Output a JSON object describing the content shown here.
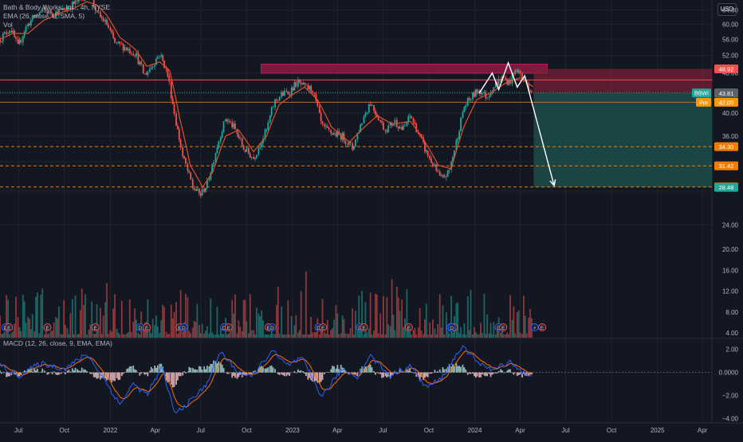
{
  "header": {
    "symbol_line": "Bath & Body Works, Inc., 4h, NYSE",
    "ema_line": "EMA (26, close, 0, SMA, 5)",
    "vol_line": "Vol",
    "currency": "USD"
  },
  "macd_legend": "MACD (12, 26, close, 9, EMA, EMA)",
  "colors": {
    "background": "#131722",
    "up": "#26a69a",
    "down": "#ef5350",
    "ema": "#e0502b",
    "macd": "#2962ff",
    "signal": "#ff6d00",
    "resistance_zone": "#9c1e4a",
    "target_zone": "#1e5a52",
    "stop_zone": "#7a2236"
  },
  "chart_data": [
    {
      "type": "candlestick",
      "name": "price",
      "interval": "4h",
      "ylim": [
        22.5,
        67
      ],
      "yticks": [
        24,
        28,
        32,
        36,
        40,
        44,
        48,
        52,
        56,
        60,
        64
      ],
      "ytick_labels": [
        "24.00",
        "",
        "",
        "36.00",
        "40.00",
        "44.00",
        "48.00",
        "52.00",
        "56.00",
        "60.00",
        "64.00"
      ],
      "xlim": [
        "2021-05-25",
        "2025-04-20"
      ],
      "xticks": [
        {
          "date": "2021-07-01",
          "label": "Jul"
        },
        {
          "date": "2021-10-01",
          "label": "Oct"
        },
        {
          "date": "2022-01-01",
          "label": "2022"
        },
        {
          "date": "2022-04-01",
          "label": "Apr"
        },
        {
          "date": "2022-07-01",
          "label": "Jul"
        },
        {
          "date": "2022-10-01",
          "label": "Oct"
        },
        {
          "date": "2023-01-01",
          "label": "2023"
        },
        {
          "date": "2023-04-01",
          "label": "Apr"
        },
        {
          "date": "2023-07-01",
          "label": "Jul"
        },
        {
          "date": "2023-10-01",
          "label": "Oct"
        },
        {
          "date": "2024-01-01",
          "label": "2024"
        },
        {
          "date": "2024-04-01",
          "label": "Apr"
        },
        {
          "date": "2024-07-01",
          "label": "Jul"
        },
        {
          "date": "2024-10-01",
          "label": "Oct"
        },
        {
          "date": "2025-01-01",
          "label": "2025"
        },
        {
          "date": "2025-04-01",
          "label": "Apr"
        }
      ],
      "price_path": [
        {
          "date": "2021-05-25",
          "price": 56.0
        },
        {
          "date": "2021-06-15",
          "price": 59.0
        },
        {
          "date": "2021-06-30",
          "price": 54.0
        },
        {
          "date": "2021-07-15",
          "price": 59.0
        },
        {
          "date": "2021-08-01",
          "price": 62.0
        },
        {
          "date": "2021-08-20",
          "price": 64.0
        },
        {
          "date": "2021-09-10",
          "price": 63.0
        },
        {
          "date": "2021-10-05",
          "price": 64.5
        },
        {
          "date": "2021-11-01",
          "price": 67.0
        },
        {
          "date": "2021-11-20",
          "price": 69.5
        },
        {
          "date": "2021-12-05",
          "price": 63.0
        },
        {
          "date": "2021-12-25",
          "price": 60.0
        },
        {
          "date": "2022-01-10",
          "price": 55.0
        },
        {
          "date": "2022-01-30",
          "price": 54.0
        },
        {
          "date": "2022-02-20",
          "price": 52.5
        },
        {
          "date": "2022-03-10",
          "price": 47.5
        },
        {
          "date": "2022-03-25",
          "price": 49.5
        },
        {
          "date": "2022-04-10",
          "price": 52.5
        },
        {
          "date": "2022-04-25",
          "price": 48.0
        },
        {
          "date": "2022-05-10",
          "price": 39.5
        },
        {
          "date": "2022-05-25",
          "price": 33.0
        },
        {
          "date": "2022-06-15",
          "price": 28.5
        },
        {
          "date": "2022-06-30",
          "price": 27.5
        },
        {
          "date": "2022-07-15",
          "price": 29.0
        },
        {
          "date": "2022-08-05",
          "price": 35.0
        },
        {
          "date": "2022-08-20",
          "price": 39.0
        },
        {
          "date": "2022-09-05",
          "price": 37.5
        },
        {
          "date": "2022-09-25",
          "price": 34.0
        },
        {
          "date": "2022-10-15",
          "price": 32.5
        },
        {
          "date": "2022-11-10",
          "price": 37.0
        },
        {
          "date": "2022-11-25",
          "price": 42.0
        },
        {
          "date": "2022-12-10",
          "price": 43.5
        },
        {
          "date": "2022-12-25",
          "price": 44.0
        },
        {
          "date": "2023-01-10",
          "price": 46.0
        },
        {
          "date": "2023-01-25",
          "price": 45.0
        },
        {
          "date": "2023-02-10",
          "price": 44.5
        },
        {
          "date": "2023-03-01",
          "price": 37.5
        },
        {
          "date": "2023-03-20",
          "price": 36.5
        },
        {
          "date": "2023-04-10",
          "price": 36.0
        },
        {
          "date": "2023-05-01",
          "price": 34.0
        },
        {
          "date": "2023-05-20",
          "price": 38.5
        },
        {
          "date": "2023-06-05",
          "price": 42.0
        },
        {
          "date": "2023-06-20",
          "price": 39.5
        },
        {
          "date": "2023-07-05",
          "price": 37.0
        },
        {
          "date": "2023-07-25",
          "price": 38.5
        },
        {
          "date": "2023-08-10",
          "price": 37.0
        },
        {
          "date": "2023-08-25",
          "price": 39.5
        },
        {
          "date": "2023-09-10",
          "price": 36.5
        },
        {
          "date": "2023-09-25",
          "price": 33.5
        },
        {
          "date": "2023-10-10",
          "price": 31.5
        },
        {
          "date": "2023-10-25",
          "price": 29.5
        },
        {
          "date": "2023-11-10",
          "price": 30.5
        },
        {
          "date": "2023-11-25",
          "price": 35.0
        },
        {
          "date": "2023-12-10",
          "price": 41.0
        },
        {
          "date": "2023-12-25",
          "price": 43.0
        },
        {
          "date": "2024-01-10",
          "price": 44.5
        },
        {
          "date": "2024-01-25",
          "price": 43.0
        },
        {
          "date": "2024-02-10",
          "price": 45.5
        },
        {
          "date": "2024-02-25",
          "price": 47.0
        },
        {
          "date": "2024-03-10",
          "price": 46.0
        },
        {
          "date": "2024-03-25",
          "price": 49.0
        },
        {
          "date": "2024-04-05",
          "price": 47.0
        },
        {
          "date": "2024-04-18",
          "price": 45.0
        },
        {
          "date": "2024-04-28",
          "price": 43.8
        }
      ],
      "ema_path": [
        {
          "date": "2021-05-25",
          "price": 56.0
        },
        {
          "date": "2021-06-20",
          "price": 57.5
        },
        {
          "date": "2021-07-20",
          "price": 57.5
        },
        {
          "date": "2021-08-20",
          "price": 61.0
        },
        {
          "date": "2021-09-20",
          "price": 63.0
        },
        {
          "date": "2021-10-20",
          "price": 64.5
        },
        {
          "date": "2021-11-15",
          "price": 66.5
        },
        {
          "date": "2021-12-05",
          "price": 65.5
        },
        {
          "date": "2021-12-25",
          "price": 62.5
        },
        {
          "date": "2022-01-20",
          "price": 56.5
        },
        {
          "date": "2022-02-20",
          "price": 53.5
        },
        {
          "date": "2022-03-15",
          "price": 49.5
        },
        {
          "date": "2022-04-10",
          "price": 50.5
        },
        {
          "date": "2022-04-30",
          "price": 48.5
        },
        {
          "date": "2022-05-20",
          "price": 39.0
        },
        {
          "date": "2022-06-10",
          "price": 31.5
        },
        {
          "date": "2022-07-05",
          "price": 28.5
        },
        {
          "date": "2022-07-25",
          "price": 30.5
        },
        {
          "date": "2022-08-20",
          "price": 36.0
        },
        {
          "date": "2022-09-15",
          "price": 37.0
        },
        {
          "date": "2022-10-15",
          "price": 33.5
        },
        {
          "date": "2022-11-10",
          "price": 36.0
        },
        {
          "date": "2022-12-05",
          "price": 41.5
        },
        {
          "date": "2023-01-01",
          "price": 43.5
        },
        {
          "date": "2023-01-25",
          "price": 45.0
        },
        {
          "date": "2023-02-20",
          "price": 42.5
        },
        {
          "date": "2023-03-20",
          "price": 37.5
        },
        {
          "date": "2023-04-25",
          "price": 35.0
        },
        {
          "date": "2023-05-25",
          "price": 37.5
        },
        {
          "date": "2023-06-20",
          "price": 39.5
        },
        {
          "date": "2023-07-20",
          "price": 38.0
        },
        {
          "date": "2023-08-25",
          "price": 38.5
        },
        {
          "date": "2023-09-20",
          "price": 35.5
        },
        {
          "date": "2023-10-20",
          "price": 31.5
        },
        {
          "date": "2023-11-15",
          "price": 31.0
        },
        {
          "date": "2023-12-10",
          "price": 37.5
        },
        {
          "date": "2024-01-05",
          "price": 42.5
        },
        {
          "date": "2024-02-05",
          "price": 44.0
        },
        {
          "date": "2024-03-05",
          "price": 46.0
        },
        {
          "date": "2024-04-01",
          "price": 47.0
        },
        {
          "date": "2024-04-28",
          "price": 45.0
        }
      ],
      "price_labels": [
        {
          "price": 48.92,
          "text": "48.92",
          "color": "#ef5350",
          "tag": ""
        },
        {
          "price": 43.82,
          "text": "43.82",
          "color": "#26a69a",
          "tag": "BBWI"
        },
        {
          "price": 43.81,
          "text": "43.81",
          "color": "#5d606b",
          "tag": ""
        },
        {
          "price": 42.0,
          "text": "42.00",
          "color": "#ff9800",
          "tag": "Pre"
        },
        {
          "price": 34.3,
          "text": "34.30",
          "color": "#f57c00",
          "tag": ""
        },
        {
          "price": 31.42,
          "text": "31.42",
          "color": "#f57c00",
          "tag": ""
        },
        {
          "price": 28.53,
          "text": "28.53",
          "color": "#f57c00",
          "tag": ""
        },
        {
          "price": 28.48,
          "text": "28.48",
          "color": "#26a69a",
          "tag": ""
        }
      ],
      "horizontal_levels": [
        {
          "price": 46.5,
          "style": "solid",
          "color": "#ef5350"
        },
        {
          "price": 43.82,
          "style": "dotted",
          "color": "#26a69a"
        },
        {
          "price": 42.0,
          "style": "solid",
          "color": "#c26b2b"
        },
        {
          "price": 34.3,
          "style": "dashed",
          "color": "#f57c00"
        },
        {
          "price": 31.42,
          "style": "dashed",
          "color": "#f57c00"
        },
        {
          "price": 28.53,
          "style": "dashed",
          "color": "#f57c00"
        }
      ],
      "resistance_zone": {
        "from": "2022-10-30",
        "to": "2024-05-25",
        "top": 50.0,
        "bottom": 47.95
      },
      "position": {
        "from": "2024-04-28",
        "entry": 43.82,
        "stop": 48.92,
        "target": 28.48
      },
      "pattern_path": [
        {
          "date": "2024-01-10",
          "price": 43.8
        },
        {
          "date": "2024-02-05",
          "price": 48.0
        },
        {
          "date": "2024-02-18",
          "price": 44.5
        },
        {
          "date": "2024-03-08",
          "price": 50.3
        },
        {
          "date": "2024-03-26",
          "price": 45.0
        },
        {
          "date": "2024-04-10",
          "price": 47.4
        },
        {
          "date": "2024-06-08",
          "price": 28.7
        }
      ],
      "event_markers": [
        {
          "date": "2021-06-05",
          "symbol": "D"
        },
        {
          "date": "2021-06-12",
          "symbol": "E"
        },
        {
          "date": "2021-08-28",
          "symbol": "E"
        },
        {
          "date": "2021-12-02",
          "symbol": "E"
        },
        {
          "date": "2022-03-02",
          "symbol": "D"
        },
        {
          "date": "2022-03-15",
          "symbol": "E"
        },
        {
          "date": "2022-05-20",
          "symbol": "E"
        },
        {
          "date": "2022-05-28",
          "symbol": "D"
        },
        {
          "date": "2022-08-17",
          "symbol": "D"
        },
        {
          "date": "2022-08-26",
          "symbol": "E"
        },
        {
          "date": "2022-11-14",
          "symbol": "E"
        },
        {
          "date": "2022-11-21",
          "symbol": "D"
        },
        {
          "date": "2023-02-22",
          "symbol": "D"
        },
        {
          "date": "2023-03-03",
          "symbol": "E"
        },
        {
          "date": "2023-05-16",
          "symbol": "D"
        },
        {
          "date": "2023-05-24",
          "symbol": "E"
        },
        {
          "date": "2023-08-22",
          "symbol": "E"
        },
        {
          "date": "2023-11-13",
          "symbol": "D"
        },
        {
          "date": "2023-11-20",
          "symbol": "E"
        },
        {
          "date": "2023-11-16",
          "symbol": "D"
        },
        {
          "date": "2024-02-18",
          "symbol": "D"
        },
        {
          "date": "2024-02-27",
          "symbol": "E"
        },
        {
          "date": "2024-04-30",
          "symbol": "⚡"
        },
        {
          "date": "2024-05-15",
          "symbol": "E"
        }
      ]
    },
    {
      "type": "bar",
      "name": "volume",
      "yticks": [
        4,
        8,
        12,
        16,
        20
      ],
      "ytick_labels": [
        "4.00",
        "8.00",
        "12.00",
        "16.00",
        "20.00"
      ]
    },
    {
      "type": "line",
      "name": "macd",
      "ylim": [
        -4.3,
        2.6
      ],
      "yticks": [
        2,
        0,
        -2,
        -4
      ],
      "ytick_labels": [
        "2.00",
        "0.0000",
        "−2.00",
        "−4.00"
      ],
      "series": [
        {
          "values_path": [
            {
              "date": "2021-05-25",
              "value": 0.6
            },
            {
              "date": "2021-07-01",
              "value": -0.3
            },
            {
              "date": "2021-08-15",
              "value": 0.8
            },
            {
              "date": "2021-10-01",
              "value": 0.3
            },
            {
              "date": "2021-11-15",
              "value": 1.6
            },
            {
              "date": "2021-12-20",
              "value": -0.6
            },
            {
              "date": "2022-01-20",
              "value": -2.8
            },
            {
              "date": "2022-02-15",
              "value": -1.0
            },
            {
              "date": "2022-03-15",
              "value": -1.9
            },
            {
              "date": "2022-04-15",
              "value": 0.4
            },
            {
              "date": "2022-05-10",
              "value": -3.6
            },
            {
              "date": "2022-06-10",
              "value": -2.5
            },
            {
              "date": "2022-07-10",
              "value": -1.2
            },
            {
              "date": "2022-08-10",
              "value": 1.8
            },
            {
              "date": "2022-09-10",
              "value": 0.2
            },
            {
              "date": "2022-10-10",
              "value": -0.5
            },
            {
              "date": "2022-11-20",
              "value": 1.9
            },
            {
              "date": "2022-12-20",
              "value": 0.6
            },
            {
              "date": "2023-01-20",
              "value": 1.2
            },
            {
              "date": "2023-03-01",
              "value": -2.1
            },
            {
              "date": "2023-04-10",
              "value": 0.3
            },
            {
              "date": "2023-05-10",
              "value": -0.4
            },
            {
              "date": "2023-06-05",
              "value": 1.5
            },
            {
              "date": "2023-07-15",
              "value": -0.3
            },
            {
              "date": "2023-08-25",
              "value": 0.6
            },
            {
              "date": "2023-09-25",
              "value": -1.3
            },
            {
              "date": "2023-10-25",
              "value": -0.6
            },
            {
              "date": "2023-12-05",
              "value": 2.2
            },
            {
              "date": "2024-01-10",
              "value": 0.9
            },
            {
              "date": "2024-02-05",
              "value": 0.1
            },
            {
              "date": "2024-03-10",
              "value": 1.0
            },
            {
              "date": "2024-04-10",
              "value": -0.1
            },
            {
              "date": "2024-04-28",
              "value": -0.6
            }
          ]
        }
      ]
    }
  ]
}
